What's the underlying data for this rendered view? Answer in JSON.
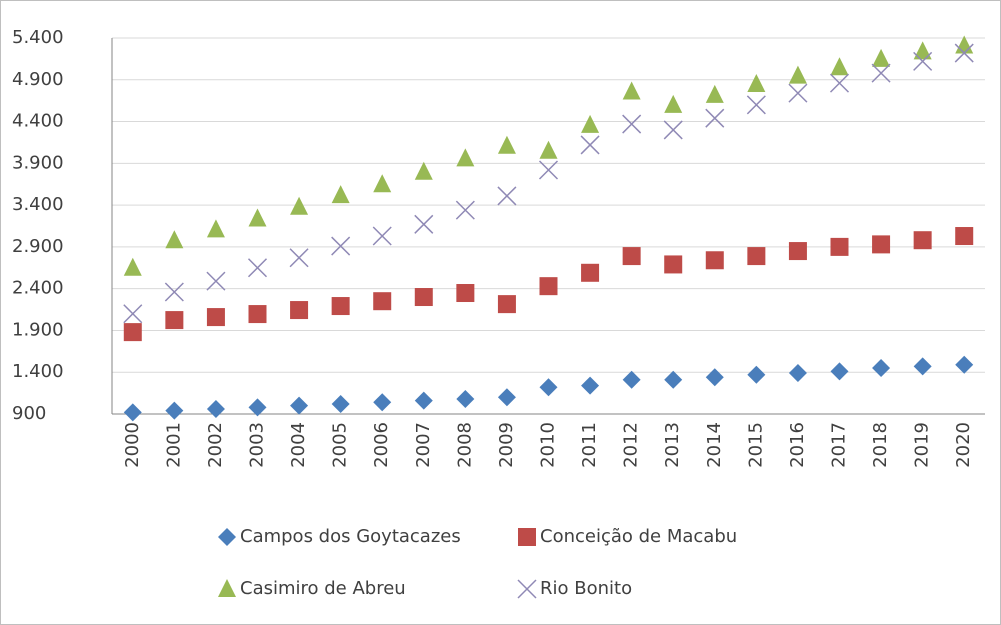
{
  "chart_data": {
    "type": "scatter",
    "categories": [
      "2000",
      "2001",
      "2002",
      "2003",
      "2004",
      "2005",
      "2006",
      "2007",
      "2008",
      "2009",
      "2010",
      "2011",
      "2012",
      "2013",
      "2014",
      "2015",
      "2016",
      "2017",
      "2018",
      "2019",
      "2020"
    ],
    "series": [
      {
        "name": "Campos dos Goytacazes",
        "color": "#4a7ebb",
        "marker": "diamond",
        "values": [
          920,
          940,
          960,
          980,
          1000,
          1020,
          1040,
          1060,
          1080,
          1100,
          1220,
          1240,
          1310,
          1310,
          1340,
          1370,
          1390,
          1410,
          1450,
          1470,
          1490
        ]
      },
      {
        "name": "Conceição de Macabu",
        "color": "#be4b48",
        "marker": "square",
        "values": [
          1880,
          2024,
          2060,
          2096,
          2144,
          2192,
          2250,
          2300,
          2348,
          2215,
          2430,
          2590,
          2790,
          2690,
          2740,
          2790,
          2850,
          2900,
          2930,
          2980,
          3030
        ]
      },
      {
        "name": "Casimiro de Abreu",
        "color": "#98b954",
        "marker": "triangle",
        "values": [
          2650,
          2980,
          3110,
          3240,
          3380,
          3520,
          3650,
          3800,
          3960,
          4110,
          4050,
          4360,
          4760,
          4600,
          4720,
          4850,
          4950,
          5050,
          5150,
          5240,
          5310
        ]
      },
      {
        "name": "Rio Bonito",
        "color": "#8f89b5",
        "marker": "x",
        "values": [
          2100,
          2360,
          2490,
          2650,
          2770,
          2910,
          3030,
          3170,
          3340,
          3510,
          3820,
          4120,
          4370,
          4300,
          4440,
          4600,
          4740,
          4860,
          4980,
          5120,
          5220
        ]
      }
    ],
    "ylim": [
      900,
      5400
    ],
    "yticks": [
      900,
      {
        "value": 1400,
        "label": "1.400"
      },
      {
        "value": 1900,
        "label": "1.900"
      },
      {
        "value": 2400,
        "label": "2.400"
      },
      {
        "value": 2900,
        "label": "2.900"
      },
      {
        "value": 3400,
        "label": "3.400"
      },
      {
        "value": 3900,
        "label": "3.900"
      },
      {
        "value": 4400,
        "label": "4.400"
      },
      {
        "value": 4900,
        "label": "4.900"
      },
      {
        "value": 5400,
        "label": "5.400"
      }
    ],
    "grid": true
  }
}
